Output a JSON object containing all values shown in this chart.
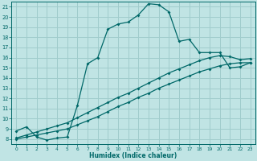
{
  "title": "",
  "xlabel": "Humidex (Indice chaleur)",
  "ylabel": "",
  "bg_color": "#c0e4e4",
  "grid_color": "#a0cccc",
  "line_color": "#006868",
  "xlim": [
    -0.5,
    23.5
  ],
  "ylim": [
    7.5,
    21.5
  ],
  "xticks": [
    0,
    1,
    2,
    3,
    4,
    5,
    6,
    7,
    8,
    9,
    10,
    11,
    12,
    13,
    14,
    15,
    16,
    17,
    18,
    19,
    20,
    21,
    22,
    23
  ],
  "yticks": [
    8,
    9,
    10,
    11,
    12,
    13,
    14,
    15,
    16,
    17,
    18,
    19,
    20,
    21
  ],
  "curve1_x": [
    0,
    1,
    2,
    3,
    4,
    5,
    6,
    7,
    8,
    9,
    10,
    11,
    12,
    13,
    14,
    15,
    16,
    17,
    18,
    19,
    20,
    21,
    22,
    23
  ],
  "curve1_y": [
    8.8,
    9.2,
    8.2,
    7.9,
    8.1,
    8.2,
    11.3,
    15.4,
    16.0,
    18.8,
    19.3,
    19.5,
    20.2,
    21.3,
    21.2,
    20.5,
    17.6,
    17.8,
    16.5,
    16.5,
    16.5,
    15.0,
    15.1,
    15.5
  ],
  "line2_x": [
    0,
    1,
    2,
    3,
    4,
    5,
    6,
    7,
    8,
    9,
    10,
    11,
    12,
    13,
    14,
    15,
    16,
    17,
    18,
    19,
    20,
    21,
    22,
    23
  ],
  "line2_y": [
    8.0,
    8.2,
    8.4,
    8.6,
    8.8,
    9.0,
    9.4,
    9.8,
    10.2,
    10.7,
    11.2,
    11.6,
    12.1,
    12.5,
    13.0,
    13.4,
    13.8,
    14.2,
    14.6,
    14.9,
    15.2,
    15.4,
    15.5,
    15.5
  ],
  "line3_x": [
    0,
    1,
    2,
    3,
    4,
    5,
    6,
    7,
    8,
    9,
    10,
    11,
    12,
    13,
    14,
    15,
    16,
    17,
    18,
    19,
    20,
    21,
    22,
    23
  ],
  "line3_y": [
    8.1,
    8.4,
    8.7,
    9.0,
    9.3,
    9.6,
    10.1,
    10.6,
    11.1,
    11.6,
    12.1,
    12.5,
    13.0,
    13.5,
    14.0,
    14.5,
    14.9,
    15.3,
    15.7,
    16.0,
    16.2,
    16.1,
    15.8,
    15.9
  ]
}
